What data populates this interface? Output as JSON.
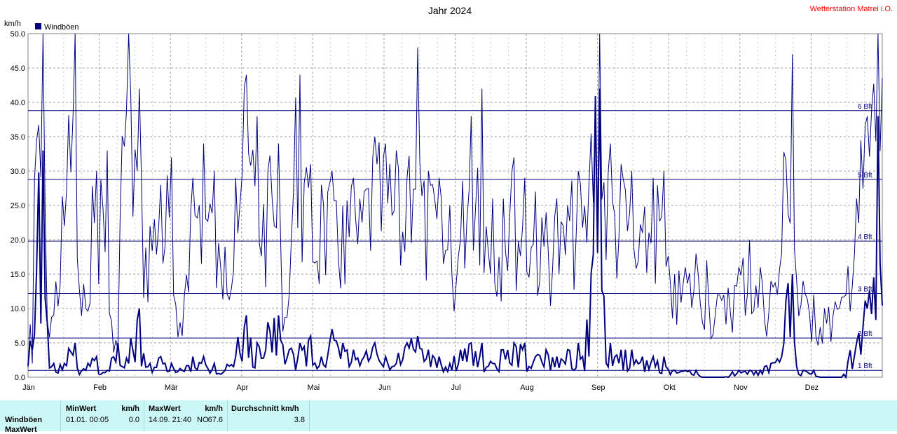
{
  "station": "Wetterstation Matrei i.O.",
  "chart_data": {
    "type": "line",
    "title": "Jahr 2024",
    "ylabel": "km/h",
    "ylim": [
      0,
      50
    ],
    "yticks": [
      "0.0",
      "5.0",
      "10.0",
      "15.0",
      "20.0",
      "25.0",
      "30.0",
      "35.0",
      "40.0",
      "45.0",
      "50.0"
    ],
    "months": [
      "Jän",
      "Feb",
      "Mär",
      "Apr",
      "Mai",
      "Jun",
      "Jul",
      "Aug",
      "Sep",
      "Okt",
      "Nov",
      "Dez"
    ],
    "grid": true,
    "legend_position": "top-left",
    "legend_color": "#000080",
    "beaufort_lines": [
      {
        "label": "1 Bft",
        "value": 1
      },
      {
        "label": "2 Bft",
        "value": 5.7
      },
      {
        "label": "3 Bft",
        "value": 12.2
      },
      {
        "label": "4 Bft",
        "value": 19.8
      },
      {
        "label": "5 Bft",
        "value": 28.8
      },
      {
        "label": "6 Bft",
        "value": 38.8
      }
    ],
    "series": [
      {
        "name": "Windböen",
        "color": "#000080",
        "peaks_weekly": [
          2,
          50,
          9,
          22,
          50,
          10,
          30,
          33,
          4,
          50,
          42,
          22,
          28,
          32,
          6,
          29,
          34,
          30,
          19,
          29,
          44,
          38,
          30,
          34,
          12,
          44,
          31,
          28,
          30,
          25,
          29,
          27,
          35,
          34,
          33,
          29,
          48,
          30,
          29,
          25,
          20,
          38,
          42,
          26,
          26,
          32,
          29,
          27,
          24,
          26,
          25,
          30,
          28,
          50,
          34,
          31,
          30,
          21,
          29,
          30,
          15,
          16,
          18,
          17,
          12,
          13,
          16,
          20,
          16,
          14,
          18,
          47,
          14,
          12,
          10,
          11,
          12,
          26,
          38,
          50
        ],
        "avg_weekly": [
          4,
          33,
          2,
          2,
          5,
          1,
          3,
          1,
          5,
          2,
          10,
          2,
          3,
          2,
          1,
          3,
          3,
          2,
          1,
          3,
          9,
          5,
          8,
          9,
          4,
          5,
          6,
          3,
          7,
          5,
          4,
          3,
          5,
          3,
          2,
          5,
          6,
          4,
          3,
          2,
          4,
          5,
          5,
          2,
          4,
          5,
          5,
          3,
          4,
          3,
          4,
          5,
          3,
          42,
          5,
          4,
          4,
          3,
          3,
          3,
          1,
          1,
          1,
          0,
          0,
          0,
          1,
          1,
          1,
          2,
          3,
          15,
          1,
          1,
          0,
          0,
          0,
          5,
          10,
          38
        ]
      }
    ]
  },
  "stats": {
    "row_label": "Windböen",
    "row_label_2": "MaxWert",
    "min_header": "MinWert",
    "unit": "km/h",
    "min_value": "01.01.  00:05",
    "min_number": "0.0",
    "max_header": "MaxWert",
    "max_value": "14.09.  21:40",
    "max_direction": "NO",
    "max_number": "67.6",
    "avg_header": "Durchschnitt km/h",
    "avg_number": "3.8"
  }
}
